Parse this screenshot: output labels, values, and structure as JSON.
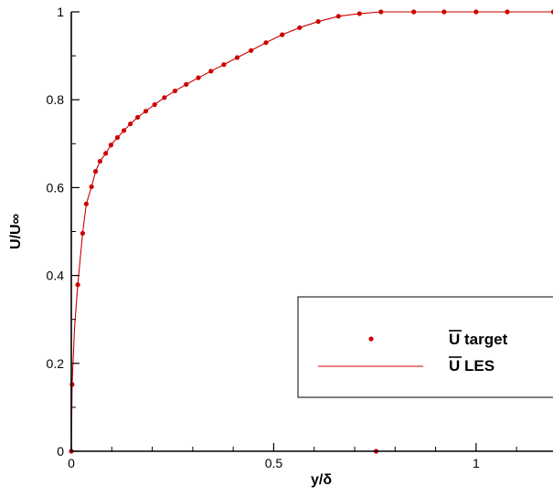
{
  "chart_data": {
    "type": "scatter",
    "xlabel": "y/δ",
    "ylabel": "U/U∞",
    "xlim": [
      0,
      1.19
    ],
    "ylim": [
      0,
      1
    ],
    "xticks": [
      0,
      0.5,
      1
    ],
    "xtick_labels": [
      "0",
      "0.5",
      "1"
    ],
    "yticks": [
      0,
      0.2,
      0.4,
      0.6,
      0.8,
      1
    ],
    "ytick_labels": [
      "0",
      "0.2",
      "0.4",
      "0.6",
      "0.8",
      "1"
    ],
    "grid": false,
    "legend_position": "bottom-right",
    "colors": {
      "series": "#cc0000",
      "axis": "#000000"
    },
    "series": [
      {
        "name": "U target",
        "style": "markers",
        "x": [
          0.0,
          0.002,
          0.016,
          0.028,
          0.037,
          0.05,
          0.06,
          0.071,
          0.085,
          0.098,
          0.114,
          0.13,
          0.146,
          0.164,
          0.184,
          0.206,
          0.23,
          0.256,
          0.284,
          0.314,
          0.345,
          0.377,
          0.41,
          0.444,
          0.481,
          0.521,
          0.564,
          0.61,
          0.66,
          0.712,
          0.765,
          0.846,
          0.921,
          1.0,
          1.077,
          1.191,
          0.753
        ],
        "y": [
          0.0,
          0.152,
          0.379,
          0.496,
          0.563,
          0.602,
          0.637,
          0.66,
          0.678,
          0.697,
          0.714,
          0.73,
          0.745,
          0.76,
          0.774,
          0.789,
          0.805,
          0.82,
          0.835,
          0.85,
          0.865,
          0.88,
          0.896,
          0.912,
          0.93,
          0.948,
          0.964,
          0.978,
          0.99,
          0.996,
          1.0,
          1.0,
          1.0,
          1.0,
          1.0,
          1.0,
          0.0
        ]
      },
      {
        "name": "U LES",
        "style": "line",
        "x": [
          0.0,
          0.002,
          0.008,
          0.016,
          0.028,
          0.037,
          0.05,
          0.06,
          0.071,
          0.085,
          0.098,
          0.114,
          0.13,
          0.146,
          0.164,
          0.184,
          0.206,
          0.23,
          0.256,
          0.284,
          0.314,
          0.345,
          0.377,
          0.41,
          0.444,
          0.481,
          0.521,
          0.564,
          0.61,
          0.66,
          0.712,
          0.765,
          0.846,
          0.921,
          1.0,
          1.077,
          1.191
        ],
        "y": [
          0.0,
          0.152,
          0.28,
          0.379,
          0.496,
          0.563,
          0.602,
          0.637,
          0.66,
          0.678,
          0.697,
          0.714,
          0.73,
          0.745,
          0.76,
          0.774,
          0.789,
          0.805,
          0.82,
          0.835,
          0.85,
          0.865,
          0.88,
          0.896,
          0.912,
          0.93,
          0.948,
          0.964,
          0.978,
          0.99,
          0.996,
          1.0,
          1.0,
          1.0,
          1.0,
          1.0,
          1.0
        ]
      }
    ],
    "legend": {
      "entries": [
        {
          "label": "U target",
          "marker": "point"
        },
        {
          "label": "U LES",
          "marker": "line"
        }
      ]
    }
  }
}
